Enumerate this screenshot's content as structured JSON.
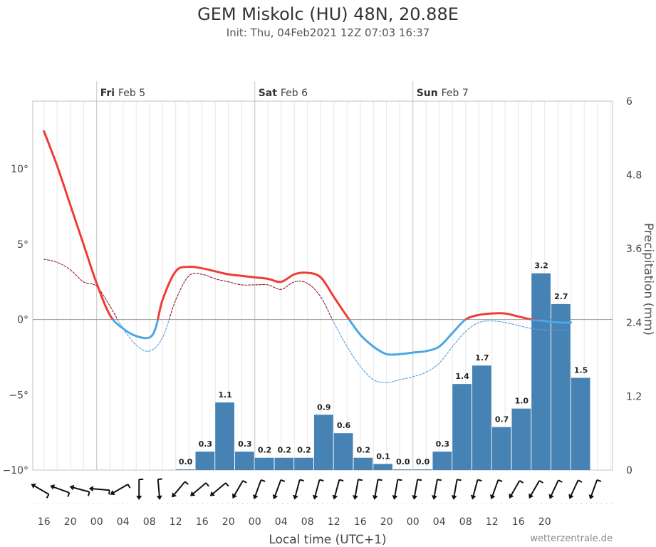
{
  "chart_data": {
    "type": "line+bar",
    "title": "GEM Miskolc (HU) 48N, 20.88E",
    "subtitle": "Init: Thu, 04Feb2021 12Z 07:03 16:37",
    "xlabel": "Local time (UTC+1)",
    "ylabel_right": "Precipitation (mm)",
    "credit": "wetterzentrale.de",
    "x_range_hours": [
      -9.7,
      78.3
    ],
    "ylim_left": [
      -10,
      14.5
    ],
    "ylim_right": [
      0,
      6
    ],
    "y_ticks_left": [
      {
        "v": 10,
        "label": "10°"
      },
      {
        "v": 5,
        "label": "5°"
      },
      {
        "v": 0,
        "label": "0°"
      },
      {
        "v": -5,
        "label": "−5°"
      },
      {
        "v": -10,
        "label": "−10°"
      }
    ],
    "y_ticks_right": [
      {
        "v": 6,
        "label": "6"
      },
      {
        "v": 4.8,
        "label": "4.8"
      },
      {
        "v": 3.6,
        "label": "3.6"
      },
      {
        "v": 2.4,
        "label": "2.4"
      },
      {
        "v": 1.2,
        "label": "1.2"
      },
      {
        "v": 0,
        "label": "0"
      }
    ],
    "x_ticks": [
      {
        "h": -8,
        "label": "16"
      },
      {
        "h": -4,
        "label": "20"
      },
      {
        "h": 0,
        "label": "00"
      },
      {
        "h": 4,
        "label": "04"
      },
      {
        "h": 8,
        "label": "08"
      },
      {
        "h": 12,
        "label": "12"
      },
      {
        "h": 16,
        "label": "16"
      },
      {
        "h": 20,
        "label": "20"
      },
      {
        "h": 24,
        "label": "00"
      },
      {
        "h": 28,
        "label": "04"
      },
      {
        "h": 32,
        "label": "08"
      },
      {
        "h": 36,
        "label": "12"
      },
      {
        "h": 40,
        "label": "16"
      },
      {
        "h": 44,
        "label": "20"
      },
      {
        "h": 48,
        "label": "00"
      },
      {
        "h": 52,
        "label": "04"
      },
      {
        "h": 56,
        "label": "08"
      },
      {
        "h": 60,
        "label": "12"
      },
      {
        "h": 64,
        "label": "16"
      },
      {
        "h": 68,
        "label": "20"
      }
    ],
    "days": [
      {
        "h": 0,
        "weekday": "Fri",
        "date": "Feb 5"
      },
      {
        "h": 24,
        "weekday": "Sat",
        "date": "Feb 6"
      },
      {
        "h": 48,
        "weekday": "Sun",
        "date": "Feb 7"
      }
    ],
    "temperature_2m": {
      "x": [
        -8,
        -6,
        -4,
        -2,
        0,
        2,
        4,
        6,
        8,
        9,
        10,
        12,
        14,
        16,
        18,
        20,
        22,
        24,
        26,
        28,
        30,
        32,
        34,
        36,
        38,
        40,
        42,
        44,
        46,
        48,
        50,
        52,
        54,
        56,
        58,
        60,
        62,
        64,
        66,
        68,
        70,
        72
      ],
      "y": [
        12.5,
        10.2,
        7.6,
        5,
        2.4,
        0.3,
        -0.6,
        -1.1,
        -1.2,
        -0.5,
        1.3,
        3.2,
        3.5,
        3.4,
        3.2,
        3.0,
        2.9,
        2.8,
        2.7,
        2.5,
        3.0,
        3.1,
        2.8,
        1.5,
        0.2,
        -1.0,
        -1.8,
        -2.3,
        -2.3,
        -2.2,
        -2.1,
        -1.8,
        -0.9,
        0.0,
        0.3,
        0.4,
        0.4,
        0.2,
        0.0,
        -0.1,
        -0.2,
        -0.2
      ]
    },
    "dewpoint_2m": {
      "x": [
        -8,
        -6,
        -4,
        -2,
        0,
        2,
        4,
        6,
        8,
        10,
        12,
        14,
        16,
        18,
        20,
        22,
        24,
        26,
        28,
        30,
        32,
        34,
        36,
        38,
        40,
        42,
        44,
        46,
        48,
        50,
        52,
        54,
        56,
        58,
        60,
        62,
        64,
        66,
        68,
        70,
        72
      ],
      "y": [
        4.0,
        3.8,
        3.3,
        2.5,
        2.2,
        0.9,
        -0.6,
        -1.7,
        -2.1,
        -1.2,
        1.3,
        2.9,
        3.0,
        2.7,
        2.5,
        2.3,
        2.3,
        2.3,
        2.0,
        2.5,
        2.4,
        1.5,
        -0.2,
        -1.8,
        -3.1,
        -4.0,
        -4.2,
        -4.0,
        -3.8,
        -3.5,
        -2.9,
        -1.8,
        -0.8,
        -0.2,
        -0.1,
        -0.2,
        -0.4,
        -0.6,
        -0.7,
        -0.7,
        -0.7
      ]
    },
    "precipitation": {
      "x": [
        0,
        3,
        6,
        9,
        12,
        15,
        18,
        21,
        24,
        27,
        30,
        33,
        36,
        39,
        42,
        45,
        48,
        51,
        54,
        57,
        60,
        63,
        66,
        69,
        72,
        75
      ],
      "values": [
        0,
        0,
        0,
        0,
        0.0,
        0.3,
        1.1,
        0.3,
        0.2,
        0.2,
        0.2,
        0.9,
        0.6,
        0.2,
        0.1,
        0.0,
        0.0,
        0.3,
        1.4,
        1.7,
        0.7,
        1.0,
        3.2,
        2.7,
        1.5,
        0
      ],
      "labels": [
        "",
        "",
        "",
        "",
        "0.0",
        "0.3",
        "1.1",
        "0.3",
        "0.2",
        "0.2",
        "0.2",
        "0.9",
        "0.6",
        "0.2",
        "0.1",
        "0.0",
        "0.0",
        "0.3",
        "1.4",
        "1.7",
        "0.7",
        "1.0",
        "3.2",
        "2.7",
        "1.5",
        ""
      ]
    },
    "wind_arrows": {
      "x": [
        -9,
        -6,
        -3,
        0,
        3,
        6,
        9,
        12,
        15,
        18,
        21,
        24,
        27,
        30,
        33,
        36,
        39,
        42,
        45,
        48,
        51,
        54,
        57,
        60,
        63,
        66,
        69,
        72,
        75
      ],
      "direction_deg": [
        300,
        290,
        285,
        275,
        240,
        180,
        175,
        220,
        230,
        230,
        210,
        200,
        200,
        195,
        195,
        195,
        190,
        190,
        190,
        190,
        190,
        190,
        195,
        200,
        210,
        210,
        205,
        205,
        200
      ]
    },
    "colors": {
      "temp_above": "#f03c37",
      "temp_below": "#4aa8e4",
      "dew_above": "#8b2020",
      "dew_below": "#5aa0e0",
      "bars": "#4682b4",
      "grid": "#e6e6e6",
      "axis": "#c0c0c0"
    }
  }
}
